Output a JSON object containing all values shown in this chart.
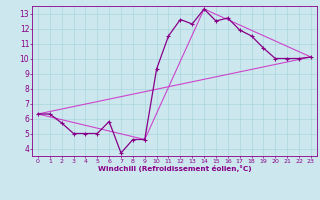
{
  "title": "",
  "xlabel": "Windchill (Refroidissement éolien,°C)",
  "bg_color": "#cce8ee",
  "grid_color": "#aad4dd",
  "line_color_dark": "#880088",
  "line_color_bright": "#cc44cc",
  "xlim": [
    -0.5,
    23.5
  ],
  "ylim": [
    3.5,
    13.5
  ],
  "yticks": [
    4,
    5,
    6,
    7,
    8,
    9,
    10,
    11,
    12,
    13
  ],
  "xticks": [
    0,
    1,
    2,
    3,
    4,
    5,
    6,
    7,
    8,
    9,
    10,
    11,
    12,
    13,
    14,
    15,
    16,
    17,
    18,
    19,
    20,
    21,
    22,
    23
  ],
  "line1_x": [
    0,
    1,
    2,
    3,
    4,
    5,
    6,
    7,
    8,
    9,
    10,
    11,
    12,
    13,
    14,
    15,
    16,
    17,
    18,
    19,
    20,
    21,
    22,
    23
  ],
  "line1_y": [
    6.3,
    6.3,
    5.7,
    5.0,
    5.0,
    5.0,
    5.8,
    3.7,
    4.6,
    4.6,
    9.3,
    11.5,
    12.6,
    12.3,
    13.3,
    12.5,
    12.7,
    11.9,
    11.5,
    10.7,
    10.0,
    10.0,
    10.0,
    10.1
  ],
  "line2_x": [
    0,
    9,
    14,
    23
  ],
  "line2_y": [
    6.3,
    4.6,
    13.3,
    10.1
  ],
  "line3_x": [
    0,
    23
  ],
  "line3_y": [
    6.3,
    10.1
  ]
}
